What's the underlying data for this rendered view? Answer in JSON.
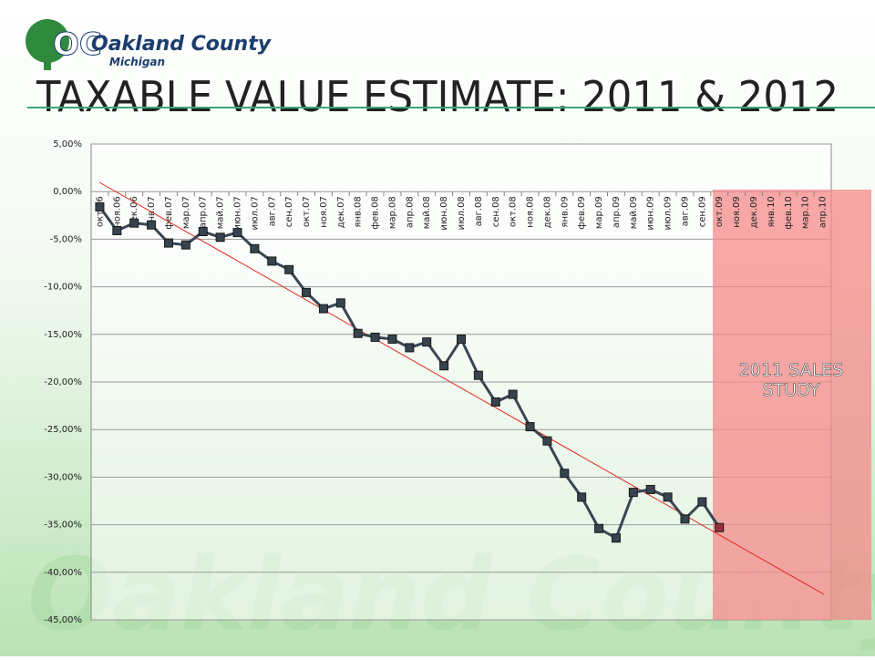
{
  "logo": {
    "name": "Oakland County",
    "state": "Michigan"
  },
  "watermark": "Oakland County",
  "chart_data": {
    "type": "line",
    "title": "TAXABLE VALUE ESTIMATE: 2011 & 2012",
    "categories": [
      "окт.06",
      "ноя.06",
      "дек.06",
      "янв.07",
      "фев.07",
      "мар.07",
      "апр.07",
      "май.07",
      "июн.07",
      "июл.07",
      "авг.07",
      "сен.07",
      "окт.07",
      "ноя.07",
      "дек.07",
      "янв.08",
      "фев.08",
      "мар.08",
      "апр.08",
      "май.08",
      "июн.08",
      "июл.08",
      "авг.08",
      "сен.08",
      "окт.08",
      "ноя.08",
      "дек.08",
      "янв.09",
      "фев.09",
      "мар.09",
      "апр.09",
      "май.09",
      "июн.09",
      "июл.09",
      "авг.09",
      "сен.09",
      "окт.09",
      "ноя.09",
      "дек.09",
      "янв.10",
      "фев.10",
      "мар.10",
      "апр.10"
    ],
    "series": [
      {
        "color": "#3a4654",
        "marker_color": "#36444f",
        "highlight_color": "#9c2d3a",
        "values": [
          -1.6,
          -4.1,
          -3.3,
          -3.5,
          -5.4,
          -5.6,
          -4.2,
          -4.8,
          -4.3,
          -6.0,
          -7.3,
          -8.2,
          -10.6,
          -12.3,
          -11.7,
          -14.9,
          -15.3,
          -15.5,
          -16.4,
          -15.8,
          -18.3,
          -15.5,
          -19.3,
          -22.1,
          -21.3,
          -24.7,
          -26.2,
          -29.6,
          -32.1,
          -35.4,
          -36.4,
          -31.6,
          -31.3,
          -32.1,
          -34.4,
          -32.6,
          -35.3,
          null,
          null,
          null,
          null,
          null,
          null
        ]
      }
    ],
    "ylim": [
      -45,
      5
    ],
    "yticks": [
      {
        "value": 5,
        "label": "5,00%"
      },
      {
        "value": 0,
        "label": "0,00%"
      },
      {
        "value": -5,
        "label": "-5,00%"
      },
      {
        "value": -10,
        "label": "-10,00%"
      },
      {
        "value": -15,
        "label": "-15,00%"
      },
      {
        "value": -20,
        "label": "-20,00%"
      },
      {
        "value": -25,
        "label": "-25,00%"
      },
      {
        "value": -30,
        "label": "-30,00%"
      },
      {
        "value": -35,
        "label": "-35,00%"
      },
      {
        "value": -40,
        "label": "-40,00%"
      },
      {
        "value": -45,
        "label": "-45,00%"
      }
    ],
    "grid": true,
    "annotation": "2011 SALES STUDY"
  }
}
